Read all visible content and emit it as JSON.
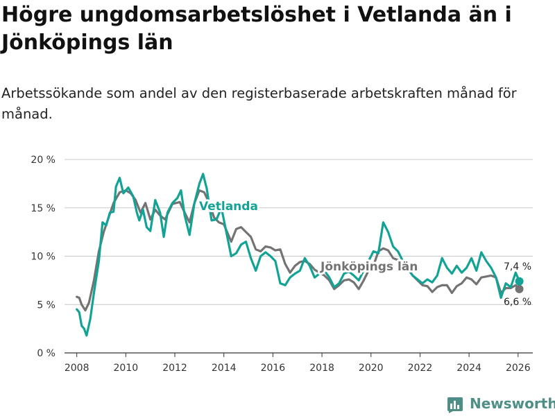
{
  "header": {
    "title": "Högre ungdomsarbetslöshet i Vetlanda än i Jönköpings län",
    "subtitle": "Arbetssökande som andel av den registerbaserade arbetskraften månad för månad."
  },
  "logo": {
    "name": "Newsworthy",
    "icon": "bar-chart-logo-icon",
    "color": "#4d8f86"
  },
  "chart_data": {
    "type": "line",
    "title": "Högre ungdomsarbetslöshet i Vetlanda än i Jönköpings län",
    "subtitle": "Arbetssökande som andel av den registerbaserade arbetskraften månad för månad.",
    "xlabel": "",
    "ylabel": "",
    "xlim": [
      2007.5,
      2026.6
    ],
    "ylim": [
      0,
      20
    ],
    "x_ticks": [
      2008,
      2010,
      2012,
      2014,
      2016,
      2018,
      2020,
      2022,
      2024,
      2026
    ],
    "x_tick_labels": [
      "2008",
      "2010",
      "2012",
      "2014",
      "2016",
      "2018",
      "2020",
      "2022",
      "2024",
      "2026"
    ],
    "y_ticks": [
      0,
      5,
      10,
      15,
      20
    ],
    "y_tick_labels": [
      "0 %",
      "5 %",
      "10 %",
      "15 %",
      "20 %"
    ],
    "grid": "horizontal",
    "series": [
      {
        "name": "Jönköpings län",
        "color": "#737373",
        "label": "Jönköpings län",
        "end_label": "6,6 %",
        "end_value": 6.6,
        "points": [
          [
            2008.0,
            5.8
          ],
          [
            2008.1,
            5.7
          ],
          [
            2008.2,
            5.0
          ],
          [
            2008.35,
            4.4
          ],
          [
            2008.5,
            5.2
          ],
          [
            2008.7,
            7.5
          ],
          [
            2008.9,
            10.5
          ],
          [
            2009.1,
            12.5
          ],
          [
            2009.3,
            14.0
          ],
          [
            2009.5,
            15.5
          ],
          [
            2009.75,
            16.6
          ],
          [
            2010.0,
            16.8
          ],
          [
            2010.2,
            16.5
          ],
          [
            2010.4,
            15.8
          ],
          [
            2010.6,
            14.5
          ],
          [
            2010.8,
            15.5
          ],
          [
            2011.0,
            13.8
          ],
          [
            2011.2,
            14.8
          ],
          [
            2011.4,
            14.2
          ],
          [
            2011.6,
            13.8
          ],
          [
            2011.9,
            15.4
          ],
          [
            2012.2,
            15.6
          ],
          [
            2012.4,
            14.5
          ],
          [
            2012.6,
            13.5
          ],
          [
            2012.8,
            15.5
          ],
          [
            2013.0,
            16.8
          ],
          [
            2013.2,
            16.6
          ],
          [
            2013.4,
            15.5
          ],
          [
            2013.6,
            14.0
          ],
          [
            2013.8,
            13.5
          ],
          [
            2014.0,
            13.3
          ],
          [
            2014.3,
            11.5
          ],
          [
            2014.5,
            12.8
          ],
          [
            2014.7,
            13.0
          ],
          [
            2014.9,
            12.5
          ],
          [
            2015.1,
            12.0
          ],
          [
            2015.3,
            10.7
          ],
          [
            2015.5,
            10.5
          ],
          [
            2015.7,
            11.0
          ],
          [
            2015.9,
            10.9
          ],
          [
            2016.1,
            10.6
          ],
          [
            2016.3,
            10.7
          ],
          [
            2016.5,
            9.2
          ],
          [
            2016.7,
            8.3
          ],
          [
            2016.9,
            9.0
          ],
          [
            2017.1,
            9.4
          ],
          [
            2017.3,
            9.5
          ],
          [
            2017.5,
            9.2
          ],
          [
            2017.7,
            8.6
          ],
          [
            2017.9,
            8.3
          ],
          [
            2018.1,
            8.0
          ],
          [
            2018.3,
            7.5
          ],
          [
            2018.5,
            6.6
          ],
          [
            2018.7,
            7.0
          ],
          [
            2018.9,
            7.5
          ],
          [
            2019.1,
            7.6
          ],
          [
            2019.3,
            7.3
          ],
          [
            2019.5,
            6.6
          ],
          [
            2019.7,
            7.5
          ],
          [
            2019.9,
            8.5
          ],
          [
            2020.1,
            9.0
          ],
          [
            2020.3,
            10.5
          ],
          [
            2020.5,
            10.8
          ],
          [
            2020.7,
            10.6
          ],
          [
            2020.9,
            9.8
          ],
          [
            2021.1,
            9.6
          ],
          [
            2021.3,
            9.0
          ],
          [
            2021.5,
            8.7
          ],
          [
            2021.7,
            8.0
          ],
          [
            2021.9,
            7.5
          ],
          [
            2022.1,
            7.0
          ],
          [
            2022.3,
            6.9
          ],
          [
            2022.5,
            6.3
          ],
          [
            2022.7,
            6.8
          ],
          [
            2022.9,
            7.0
          ],
          [
            2023.1,
            7.0
          ],
          [
            2023.3,
            6.2
          ],
          [
            2023.5,
            6.9
          ],
          [
            2023.7,
            7.2
          ],
          [
            2023.9,
            7.8
          ],
          [
            2024.1,
            7.6
          ],
          [
            2024.3,
            7.1
          ],
          [
            2024.5,
            7.8
          ],
          [
            2024.7,
            7.9
          ],
          [
            2024.9,
            8.0
          ],
          [
            2025.1,
            7.8
          ],
          [
            2025.3,
            6.2
          ],
          [
            2025.5,
            6.7
          ],
          [
            2025.7,
            6.7
          ],
          [
            2025.9,
            7.0
          ],
          [
            2026.05,
            6.6
          ]
        ]
      },
      {
        "name": "Vetlanda",
        "color": "#12a396",
        "label": "Vetlanda",
        "end_label": "7,4 %",
        "end_value": 7.4,
        "points": [
          [
            2008.0,
            4.5
          ],
          [
            2008.1,
            4.2
          ],
          [
            2008.2,
            2.8
          ],
          [
            2008.3,
            2.5
          ],
          [
            2008.4,
            1.8
          ],
          [
            2008.55,
            3.5
          ],
          [
            2008.7,
            6.2
          ],
          [
            2008.9,
            9.5
          ],
          [
            2009.05,
            13.5
          ],
          [
            2009.2,
            13.2
          ],
          [
            2009.35,
            14.5
          ],
          [
            2009.5,
            14.6
          ],
          [
            2009.6,
            17.2
          ],
          [
            2009.75,
            18.1
          ],
          [
            2009.9,
            16.5
          ],
          [
            2010.1,
            17.1
          ],
          [
            2010.3,
            16.2
          ],
          [
            2010.45,
            14.5
          ],
          [
            2010.55,
            13.7
          ],
          [
            2010.7,
            14.8
          ],
          [
            2010.85,
            13.0
          ],
          [
            2011.0,
            12.6
          ],
          [
            2011.2,
            15.8
          ],
          [
            2011.4,
            14.5
          ],
          [
            2011.55,
            12.0
          ],
          [
            2011.7,
            14.5
          ],
          [
            2011.9,
            15.5
          ],
          [
            2012.1,
            16.0
          ],
          [
            2012.25,
            16.8
          ],
          [
            2012.4,
            14.2
          ],
          [
            2012.6,
            12.2
          ],
          [
            2012.8,
            15.5
          ],
          [
            2013.0,
            17.5
          ],
          [
            2013.15,
            18.5
          ],
          [
            2013.3,
            17.0
          ],
          [
            2013.5,
            13.7
          ],
          [
            2013.7,
            13.8
          ],
          [
            2013.9,
            15.0
          ],
          [
            2014.1,
            12.5
          ],
          [
            2014.3,
            10.0
          ],
          [
            2014.5,
            10.3
          ],
          [
            2014.7,
            11.2
          ],
          [
            2014.9,
            11.5
          ],
          [
            2015.1,
            9.8
          ],
          [
            2015.3,
            8.5
          ],
          [
            2015.5,
            10.0
          ],
          [
            2015.7,
            10.4
          ],
          [
            2015.9,
            10.0
          ],
          [
            2016.1,
            9.5
          ],
          [
            2016.3,
            7.2
          ],
          [
            2016.5,
            7.0
          ],
          [
            2016.7,
            7.8
          ],
          [
            2016.9,
            8.2
          ],
          [
            2017.1,
            8.5
          ],
          [
            2017.3,
            9.8
          ],
          [
            2017.5,
            9.0
          ],
          [
            2017.7,
            7.8
          ],
          [
            2017.9,
            8.2
          ],
          [
            2018.1,
            8.5
          ],
          [
            2018.3,
            7.8
          ],
          [
            2018.5,
            6.8
          ],
          [
            2018.7,
            7.2
          ],
          [
            2018.9,
            8.2
          ],
          [
            2019.1,
            8.4
          ],
          [
            2019.3,
            8.0
          ],
          [
            2019.5,
            7.5
          ],
          [
            2019.7,
            8.5
          ],
          [
            2019.9,
            9.5
          ],
          [
            2020.1,
            10.5
          ],
          [
            2020.3,
            10.3
          ],
          [
            2020.5,
            13.5
          ],
          [
            2020.7,
            12.5
          ],
          [
            2020.9,
            11.0
          ],
          [
            2021.1,
            10.5
          ],
          [
            2021.3,
            9.5
          ],
          [
            2021.5,
            8.8
          ],
          [
            2021.7,
            8.0
          ],
          [
            2021.9,
            7.6
          ],
          [
            2022.1,
            7.2
          ],
          [
            2022.3,
            7.6
          ],
          [
            2022.5,
            7.3
          ],
          [
            2022.7,
            8.0
          ],
          [
            2022.9,
            9.8
          ],
          [
            2023.1,
            8.8
          ],
          [
            2023.3,
            8.2
          ],
          [
            2023.5,
            9.0
          ],
          [
            2023.7,
            8.3
          ],
          [
            2023.9,
            8.8
          ],
          [
            2024.1,
            9.8
          ],
          [
            2024.3,
            8.5
          ],
          [
            2024.5,
            10.4
          ],
          [
            2024.7,
            9.5
          ],
          [
            2024.9,
            8.8
          ],
          [
            2025.1,
            7.8
          ],
          [
            2025.3,
            5.7
          ],
          [
            2025.5,
            7.2
          ],
          [
            2025.7,
            6.8
          ],
          [
            2025.9,
            8.3
          ],
          [
            2026.05,
            7.4
          ]
        ]
      }
    ]
  }
}
